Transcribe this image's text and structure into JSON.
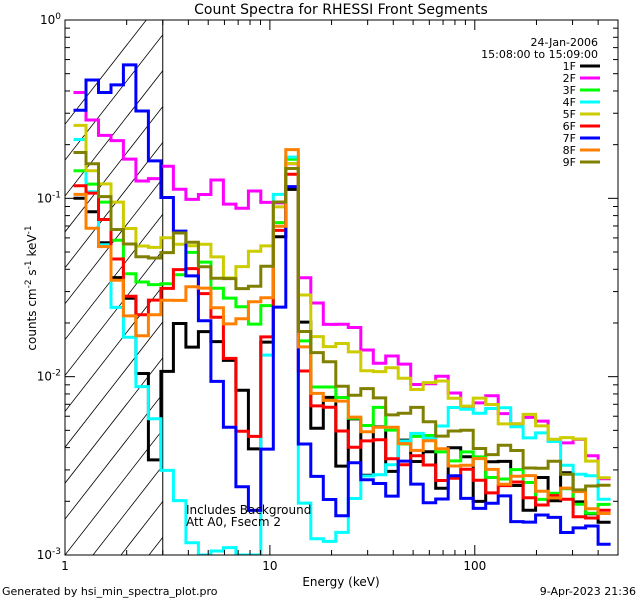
{
  "chart_data": {
    "type": "line",
    "title": "Count Spectra for RHESSI Front Segments",
    "xlabel": "Energy (keV)",
    "ylabel_parts": [
      "counts cm",
      "-2",
      " s",
      "-1",
      " keV",
      "-1"
    ],
    "xscale": "log",
    "yscale": "log",
    "xlim": [
      1,
      500
    ],
    "ylim": [
      0.001,
      1
    ],
    "xticks": [
      {
        "v": 1,
        "label": "1"
      },
      {
        "v": 10,
        "label": "10"
      },
      {
        "v": 100,
        "label": "100"
      }
    ],
    "yticks": [
      {
        "v": 0.001,
        "base": "10",
        "exp": "-3"
      },
      {
        "v": 0.01,
        "base": "10",
        "exp": "-2"
      },
      {
        "v": 0.1,
        "base": "10",
        "exp": "-1"
      },
      {
        "v": 1,
        "base": "10",
        "exp": "0"
      }
    ],
    "hatch_region_max_keV": 3,
    "date_label": "24-Jan-2006",
    "time_label": "15:08:00 to 15:09:00",
    "annotations": [
      "Includes Background",
      "Att A0, Fsecm 2"
    ],
    "series": [
      {
        "name": "1F",
        "color": "#000000",
        "y": [
          0.1,
          0.075,
          0.058,
          0.04,
          0.026,
          0.0095,
          0.0037,
          0.0115,
          0.018,
          0.014,
          0.02,
          0.016,
          0.011,
          0.0085,
          0.0044,
          0.015,
          0.055,
          0.12,
          0.022,
          0.0047,
          0.0072,
          0.0035,
          0.006,
          0.0025,
          0.0052,
          0.0033,
          0.0043,
          0.003,
          0.004,
          0.0026,
          0.0037,
          0.0033,
          0.0022,
          0.0035,
          0.003,
          0.0024,
          0.002,
          0.0027,
          0.0018,
          0.003,
          0.0022,
          0.0016,
          0.0014
        ]
      },
      {
        "name": "2F",
        "color": "#ff00ff",
        "y": [
          0.36,
          0.3,
          0.24,
          0.19,
          0.16,
          0.14,
          0.13,
          0.135,
          0.115,
          0.11,
          0.1,
          0.115,
          0.1,
          0.095,
          0.1,
          0.09,
          0.105,
          0.16,
          0.032,
          0.026,
          0.022,
          0.019,
          0.017,
          0.015,
          0.013,
          0.012,
          0.011,
          0.01,
          0.0095,
          0.009,
          0.008,
          0.0075,
          0.007,
          0.007,
          0.0065,
          0.006,
          0.0055,
          0.0052,
          0.0048,
          0.0045,
          0.004,
          0.0035,
          0.003
        ]
      },
      {
        "name": "3F",
        "color": "#00ff00",
        "y": [
          0.16,
          0.12,
          0.085,
          0.06,
          0.042,
          0.032,
          0.03,
          0.036,
          0.04,
          0.045,
          0.042,
          0.035,
          0.028,
          0.022,
          0.02,
          0.028,
          0.07,
          0.15,
          0.017,
          0.0095,
          0.008,
          0.0072,
          0.0065,
          0.0055,
          0.006,
          0.005,
          0.0047,
          0.0045,
          0.0042,
          0.004,
          0.0037,
          0.0035,
          0.0033,
          0.003,
          0.0028,
          0.0027,
          0.0025,
          0.0023,
          0.0022,
          0.0021,
          0.002,
          0.0019,
          0.0018
        ]
      },
      {
        "name": "4F",
        "color": "#00ffff",
        "y": [
          0.2,
          0.1,
          0.06,
          0.026,
          0.015,
          0.0085,
          0.0065,
          0.003,
          0.0018,
          0.0012,
          0.0011,
          0.001,
          0.001,
          0.001,
          0.001,
          0.012,
          0.1,
          0.19,
          0.002,
          0.0011,
          0.0012,
          0.0015,
          0.002,
          0.0025,
          0.003,
          0.0035,
          0.004,
          0.0045,
          0.005,
          0.0055,
          0.006,
          0.0065,
          0.007,
          0.0065,
          0.006,
          0.0055,
          0.005,
          0.0045,
          0.004,
          0.0035,
          0.003,
          0.0025,
          0.002
        ]
      },
      {
        "name": "5F",
        "color": "#cccc00",
        "y": [
          0.25,
          0.16,
          0.12,
          0.085,
          0.07,
          0.06,
          0.05,
          0.055,
          0.06,
          0.058,
          0.05,
          0.045,
          0.04,
          0.042,
          0.045,
          0.055,
          0.1,
          0.15,
          0.026,
          0.018,
          0.016,
          0.014,
          0.013,
          0.012,
          0.011,
          0.01,
          0.0098,
          0.0095,
          0.009,
          0.0085,
          0.008,
          0.0075,
          0.007,
          0.0065,
          0.006,
          0.0057,
          0.0055,
          0.0052,
          0.005,
          0.0045,
          0.004,
          0.0035,
          0.003
        ]
      },
      {
        "name": "6F",
        "color": "#ff0000",
        "y": [
          0.13,
          0.1,
          0.07,
          0.05,
          0.03,
          0.02,
          0.026,
          0.035,
          0.04,
          0.036,
          0.03,
          0.024,
          0.012,
          0.0045,
          0.005,
          0.018,
          0.06,
          0.13,
          0.012,
          0.007,
          0.006,
          0.005,
          0.0045,
          0.0042,
          0.004,
          0.0037,
          0.0035,
          0.0033,
          0.003,
          0.0029,
          0.0028,
          0.0027,
          0.0026,
          0.0025,
          0.0024,
          0.0023,
          0.0022,
          0.0021,
          0.002,
          0.0019,
          0.0018,
          0.0017,
          0.0016
        ]
      },
      {
        "name": "7F",
        "color": "#0000ff",
        "y": [
          0.28,
          0.45,
          0.44,
          0.43,
          0.5,
          0.32,
          0.18,
          0.095,
          0.06,
          0.04,
          0.022,
          0.0085,
          0.005,
          0.0027,
          0.0018,
          0.0035,
          0.025,
          0.13,
          0.004,
          0.0025,
          0.0022,
          0.0018,
          0.003,
          0.0025,
          0.0028,
          0.0022,
          0.003,
          0.0025,
          0.0022,
          0.002,
          0.0025,
          0.0022,
          0.002,
          0.0018,
          0.002,
          0.0017,
          0.0016,
          0.0015,
          0.0016,
          0.0015,
          0.0014,
          0.0013,
          0.0012
        ]
      },
      {
        "name": "8F",
        "color": "#ff8000",
        "y": [
          0.11,
          0.075,
          0.05,
          0.032,
          0.024,
          0.018,
          0.02,
          0.026,
          0.03,
          0.032,
          0.028,
          0.025,
          0.022,
          0.02,
          0.024,
          0.03,
          0.075,
          0.17,
          0.014,
          0.009,
          0.0075,
          0.0065,
          0.006,
          0.0055,
          0.005,
          0.0047,
          0.0045,
          0.0042,
          0.004,
          0.0037,
          0.0035,
          0.0033,
          0.0031,
          0.003,
          0.0028,
          0.0027,
          0.0025,
          0.0024,
          0.0023,
          0.0022,
          0.0021,
          0.002,
          0.0018
        ]
      },
      {
        "name": "9F",
        "color": "#808000",
        "y": [
          0.19,
          0.14,
          0.1,
          0.075,
          0.055,
          0.042,
          0.048,
          0.055,
          0.06,
          0.052,
          0.045,
          0.038,
          0.032,
          0.03,
          0.036,
          0.042,
          0.085,
          0.15,
          0.02,
          0.013,
          0.011,
          0.0095,
          0.0085,
          0.0078,
          0.0072,
          0.0068,
          0.0064,
          0.006,
          0.0056,
          0.0052,
          0.0048,
          0.0045,
          0.0042,
          0.004,
          0.0038,
          0.0036,
          0.0034,
          0.0032,
          0.003,
          0.0028,
          0.0026,
          0.0024,
          0.0022
        ]
      }
    ]
  },
  "footer": {
    "generated_by": "Generated by hsi_min_spectra_plot.pro",
    "timestamp": "9-Apr-2023 21:36"
  }
}
